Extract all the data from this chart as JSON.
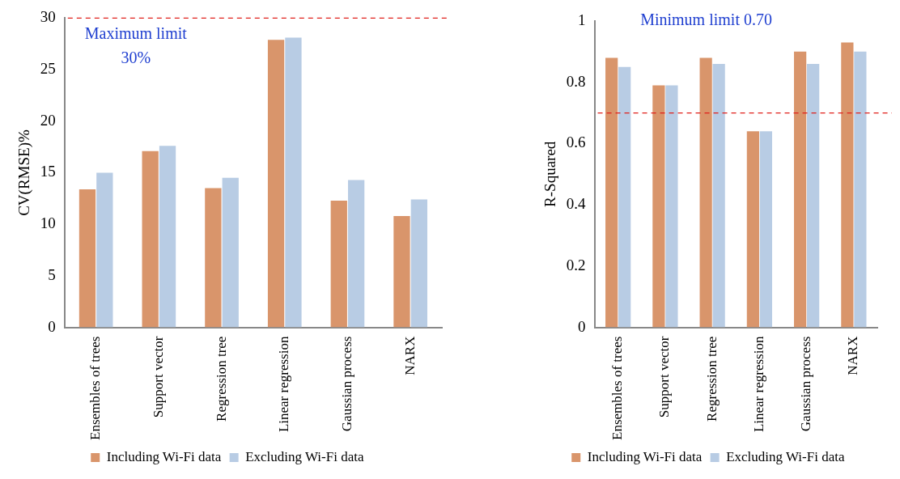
{
  "chart_data": [
    {
      "type": "bar",
      "ylabel": "CV(RMSE)%",
      "categories": [
        "Ensembles of trees",
        "Support vector",
        "Regression tree",
        "Linear regression",
        "Gaussian process",
        "NARX"
      ],
      "series": [
        {
          "name": "Including Wi-Fi data",
          "color": "#d9956b",
          "values": [
            13.4,
            17.1,
            13.5,
            27.9,
            12.3,
            10.8
          ]
        },
        {
          "name": "Excluding Wi-Fi data",
          "color": "#b8cce4",
          "values": [
            15.0,
            17.6,
            14.5,
            28.1,
            14.3,
            12.4
          ]
        }
      ],
      "ylim": [
        0,
        30
      ],
      "yticks": [
        0,
        5,
        10,
        15,
        20,
        25,
        30
      ],
      "grid": false,
      "legend": "bottom",
      "ref_lines": [
        {
          "axis": "y",
          "value": 30,
          "color": "#e0201b",
          "line_style": "dashed"
        }
      ],
      "annotations": [
        "Maximum limit 30%"
      ]
    },
    {
      "type": "bar",
      "ylabel": "R-Squared",
      "categories": [
        "Ensembles of trees",
        "Support vector",
        "Regression tree",
        "Linear regression",
        "Gaussian process",
        "NARX"
      ],
      "series": [
        {
          "name": "Including Wi-Fi data",
          "color": "#d9956b",
          "values": [
            0.88,
            0.79,
            0.88,
            0.64,
            0.9,
            0.93
          ]
        },
        {
          "name": "Excluding Wi-Fi data",
          "color": "#b8cce4",
          "values": [
            0.85,
            0.79,
            0.86,
            0.64,
            0.86,
            0.9
          ]
        }
      ],
      "ylim": [
        0,
        1
      ],
      "yticks": [
        0,
        0.2,
        0.4,
        0.6,
        0.8,
        1
      ],
      "grid": false,
      "legend": "bottom",
      "ref_lines": [
        {
          "axis": "y",
          "value": 0.7,
          "color": "#e0201b",
          "line_style": "dashed"
        }
      ],
      "annotations": [
        "Minimum limit 0.70"
      ]
    }
  ]
}
